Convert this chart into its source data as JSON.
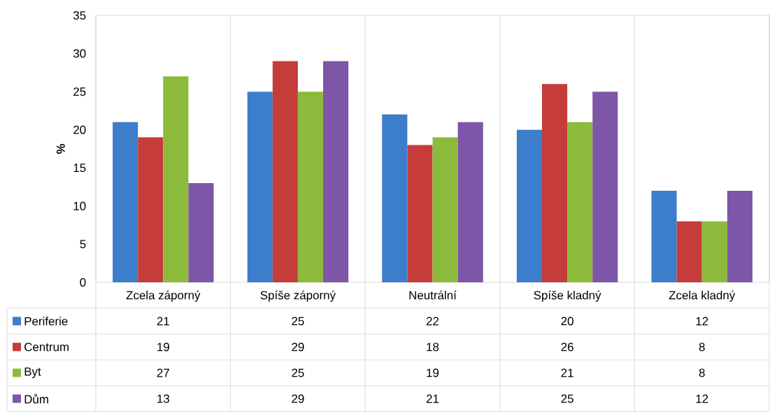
{
  "chart_data": {
    "type": "bar",
    "ylabel": "%",
    "categories": [
      "Zcela záporný",
      "Spíše záporný",
      "Neutrální",
      "Spíše kladný",
      "Zcela kladný"
    ],
    "series": [
      {
        "name": "Periferie",
        "color": "#3c7dcc",
        "values": [
          21,
          25,
          22,
          20,
          12
        ]
      },
      {
        "name": "Centrum",
        "color": "#c63c3a",
        "values": [
          19,
          29,
          18,
          26,
          8
        ]
      },
      {
        "name": "Byt",
        "color": "#8cbb3c",
        "values": [
          27,
          25,
          19,
          21,
          8
        ]
      },
      {
        "name": "Dům",
        "color": "#7d56a8",
        "values": [
          13,
          29,
          21,
          25,
          12
        ]
      }
    ],
    "ylim": [
      0,
      35
    ],
    "yticks": [
      0,
      5,
      10,
      15,
      20,
      25,
      30,
      35
    ],
    "grid": false,
    "legend": "bottom",
    "data_labels": true
  }
}
